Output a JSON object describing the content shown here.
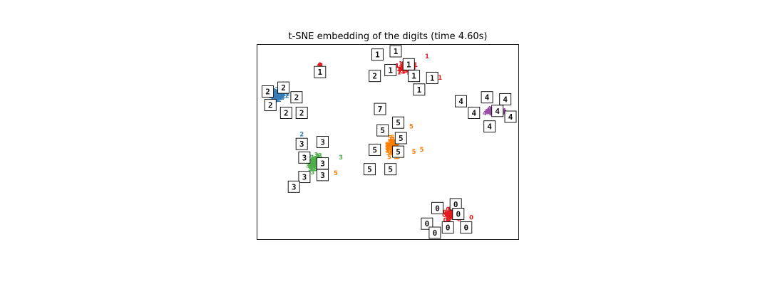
{
  "chart_data": {
    "type": "scatter",
    "title": "t-SNE embedding of the digits (time 4.60s)",
    "xlabel": "",
    "ylabel": "",
    "xlim": [
      0,
      1
    ],
    "ylim": [
      0,
      1
    ],
    "axis_ticks": "none",
    "grid": false,
    "legend": "none",
    "colors": {
      "0": "#e41a1c",
      "1": "#e41a1c",
      "2": "#377eb8",
      "3": "#4daf4a",
      "4": "#984ea3",
      "5": "#ff7f00"
    },
    "clusters": [
      {
        "label": "0",
        "center": [
          0.75,
          0.12
        ],
        "spread": [
          0.045,
          0.04
        ],
        "count": 70
      },
      {
        "label": "1",
        "center": [
          0.57,
          0.87
        ],
        "spread": [
          0.05,
          0.045
        ],
        "count": 70
      },
      {
        "label": "1",
        "center": [
          0.24,
          0.88
        ],
        "spread": [
          0.012,
          0.01
        ],
        "count": 8
      },
      {
        "label": "2",
        "center": [
          0.08,
          0.73
        ],
        "spread": [
          0.045,
          0.035
        ],
        "count": 70
      },
      {
        "label": "3",
        "center": [
          0.22,
          0.38
        ],
        "spread": [
          0.035,
          0.06
        ],
        "count": 70
      },
      {
        "label": "4",
        "center": [
          0.91,
          0.65
        ],
        "spread": [
          0.05,
          0.025
        ],
        "count": 70
      },
      {
        "label": "5",
        "center": [
          0.52,
          0.46
        ],
        "spread": [
          0.03,
          0.065
        ],
        "count": 70
      }
    ],
    "outlier_points": [
      {
        "label": "2",
        "x": 0.17,
        "y": 0.53
      },
      {
        "label": "3",
        "x": 0.32,
        "y": 0.41
      },
      {
        "label": "5",
        "x": 0.6,
        "y": 0.44
      },
      {
        "label": "5",
        "x": 0.63,
        "y": 0.45
      },
      {
        "label": "5",
        "x": 0.59,
        "y": 0.57
      },
      {
        "label": "5",
        "x": 0.5,
        "y": 0.35
      },
      {
        "label": "5",
        "x": 0.3,
        "y": 0.33
      },
      {
        "label": "1",
        "x": 0.65,
        "y": 0.93
      },
      {
        "label": "1",
        "x": 0.7,
        "y": 0.82
      },
      {
        "label": "0",
        "x": 0.82,
        "y": 0.1
      }
    ],
    "thumbnails": [
      {
        "digit": "1",
        "x": 0.46,
        "y": 0.95
      },
      {
        "digit": "1",
        "x": 0.53,
        "y": 0.98
      },
      {
        "digit": "1",
        "x": 0.24,
        "y": 0.86
      },
      {
        "digit": "2",
        "x": 0.45,
        "y": 0.84
      },
      {
        "digit": "1",
        "x": 0.51,
        "y": 0.87
      },
      {
        "digit": "1",
        "x": 0.58,
        "y": 0.9
      },
      {
        "digit": "1",
        "x": 0.6,
        "y": 0.84
      },
      {
        "digit": "1",
        "x": 0.67,
        "y": 0.83
      },
      {
        "digit": "1",
        "x": 0.62,
        "y": 0.77
      },
      {
        "digit": "2",
        "x": 0.04,
        "y": 0.76
      },
      {
        "digit": "2",
        "x": 0.1,
        "y": 0.78
      },
      {
        "digit": "2",
        "x": 0.15,
        "y": 0.73
      },
      {
        "digit": "2",
        "x": 0.05,
        "y": 0.69
      },
      {
        "digit": "2",
        "x": 0.11,
        "y": 0.65
      },
      {
        "digit": "2",
        "x": 0.17,
        "y": 0.65
      },
      {
        "digit": "4",
        "x": 0.78,
        "y": 0.71
      },
      {
        "digit": "4",
        "x": 0.88,
        "y": 0.73
      },
      {
        "digit": "4",
        "x": 0.95,
        "y": 0.72
      },
      {
        "digit": "4",
        "x": 0.83,
        "y": 0.65
      },
      {
        "digit": "4",
        "x": 0.92,
        "y": 0.66
      },
      {
        "digit": "4",
        "x": 0.97,
        "y": 0.63
      },
      {
        "digit": "4",
        "x": 0.89,
        "y": 0.58
      },
      {
        "digit": "7",
        "x": 0.47,
        "y": 0.67
      },
      {
        "digit": "5",
        "x": 0.54,
        "y": 0.6
      },
      {
        "digit": "5",
        "x": 0.48,
        "y": 0.56
      },
      {
        "digit": "5",
        "x": 0.55,
        "y": 0.52
      },
      {
        "digit": "5",
        "x": 0.45,
        "y": 0.46
      },
      {
        "digit": "5",
        "x": 0.54,
        "y": 0.45
      },
      {
        "digit": "5",
        "x": 0.43,
        "y": 0.36
      },
      {
        "digit": "5",
        "x": 0.51,
        "y": 0.36
      },
      {
        "digit": "3",
        "x": 0.17,
        "y": 0.49
      },
      {
        "digit": "3",
        "x": 0.25,
        "y": 0.5
      },
      {
        "digit": "3",
        "x": 0.18,
        "y": 0.42
      },
      {
        "digit": "3",
        "x": 0.25,
        "y": 0.39
      },
      {
        "digit": "3",
        "x": 0.18,
        "y": 0.32
      },
      {
        "digit": "3",
        "x": 0.25,
        "y": 0.33
      },
      {
        "digit": "3",
        "x": 0.14,
        "y": 0.27
      },
      {
        "digit": "0",
        "x": 0.69,
        "y": 0.16
      },
      {
        "digit": "0",
        "x": 0.76,
        "y": 0.18
      },
      {
        "digit": "0",
        "x": 0.77,
        "y": 0.13
      },
      {
        "digit": "0",
        "x": 0.65,
        "y": 0.08
      },
      {
        "digit": "0",
        "x": 0.73,
        "y": 0.06
      },
      {
        "digit": "0",
        "x": 0.8,
        "y": 0.06
      },
      {
        "digit": "0",
        "x": 0.68,
        "y": 0.02
      }
    ]
  }
}
